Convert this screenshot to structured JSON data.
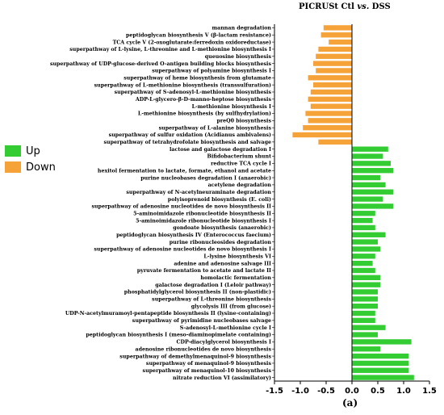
{
  "title_prefix": "PICRUSt Ctl",
  "title_vs": "vs.",
  "title_suffix": "DSS",
  "panel_label": "(a)",
  "colors": {
    "up": "#33cc33",
    "down": "#f5a238"
  },
  "legend": [
    {
      "key": "up",
      "label": "Up"
    },
    {
      "key": "down",
      "label": "Down"
    }
  ],
  "chart_data": {
    "type": "bar",
    "orientation": "horizontal",
    "title": "PICRUSt Ctl vs. DSS",
    "xlim": [
      -1.5,
      1.5
    ],
    "xticks": [
      "-1.5",
      "-1.0",
      "-0.5",
      "0.0",
      "0.5",
      "1.0",
      "1.5"
    ],
    "xtick_values": [
      -1.5,
      -1.0,
      -0.5,
      0.0,
      0.5,
      1.0,
      1.5
    ],
    "series": [
      {
        "name": "Up",
        "color": "#33cc33"
      },
      {
        "name": "Down",
        "color": "#f5a238"
      }
    ],
    "categories": [
      "mannan degradation",
      "peptidoglycan biosynthesis V (&beta;-lactam resistance)",
      "TCA cycle V (2-oxoglutarate:ferredoxin oxidoreductase)",
      "superpathway of L-lysine, L-threonine and L-methionine biosynthesis I",
      "queuosine biosynthesis",
      "superpathway of UDP-glucose-derived O-antigen building blocks biosynthesis",
      "superpathway of polyamine biosynthesis I",
      "superpathway of heme biosynthesis from glutamate",
      "superpathway of L-methionine biosynthesis (transsulfuration)",
      "superpathway of S-adenosyl-L-methionine biosynthesis",
      "ADP-L-glycero-&beta;-D-manno-heptose biosynthesis",
      "L-methionine biosynthesis I",
      "L-methionine biosynthesis (by sulfhydrylation)",
      "preQ0 biosynthesis",
      "superpathway of L-alanine biosynthesis",
      "superpathway of sulfur oxidation (Acidianus ambivalens)",
      "superpathway of tetrahydrofolate biosynthesis and salvage",
      "lactose and galactose degradation I",
      "Bifidobacterium shunt",
      "reductive TCA cycle I",
      "hexitol fermentation to lactate, formate, ethanol and acetate",
      "purine nucleobases degradation I (anaerobic)",
      "acetylene degradation",
      "superpathway of N-acetylneuraminate degradation",
      "polyisoprenoid biosynthesis (E. coli)",
      "superpathway of adenosine nucleotides de novo biosynthesis II",
      "5-aminoimidazole ribonucleotide biosynthesis II",
      "5-aminoimidazole ribonucleotide biosynthesis I",
      "gondoate biosynthesis (anaerobic)",
      "peptidoglycan biosynthesis IV (Enterococcus faecium)",
      "purine ribonucleosides degradation",
      "superpathway of adenosine nucleotides de novo biosynthesis I",
      "L-lysine biosynthesis VI",
      "adenine and adenosine salvage III",
      "pyruvate fermentation to acetate and lactate II",
      "homolactic fermentation",
      "galactose degradation I (Leloir pathway)",
      "phosphatidylglycerol biosynthesis II (non-plastidic)",
      "superpathway of L-threonine biosynthesis",
      "glycolysis III (from glucose)",
      "UDP-N-acetylmuramoyl-pentapeptide biosynthesis II (lysine-containing)",
      "superpathway of pyrimidine nucleobases salvage",
      "S-adenosyl-L-methionine cycle I",
      "peptidoglycan biosynthesis I (meso-diaminopimelate containing)",
      "CDP-diacylglycerol biosynthesis I",
      "adenosine ribonucleotides de novo biosynthesis",
      "superpathway of demethylmenaquinol-9 biosynthesis",
      "superpathway of menaquinol-9 biosynthesis",
      "superpathway of menaquinol-10 biosynthesis",
      "nitrate reduction VI (assimilatory)"
    ],
    "values": [
      -0.55,
      -0.6,
      -0.45,
      -0.65,
      -0.7,
      -0.75,
      -0.7,
      -0.85,
      -0.75,
      -0.8,
      -0.85,
      -0.8,
      -0.9,
      -0.85,
      -0.95,
      -1.15,
      -0.65,
      0.7,
      0.6,
      0.75,
      0.8,
      0.55,
      0.65,
      0.8,
      0.6,
      0.8,
      0.45,
      0.4,
      0.45,
      0.65,
      0.5,
      0.55,
      0.45,
      0.4,
      0.45,
      0.55,
      0.55,
      0.5,
      0.5,
      0.5,
      0.45,
      0.45,
      0.65,
      0.5,
      1.15,
      0.55,
      1.1,
      1.1,
      1.1,
      1.2
    ],
    "grid": false,
    "legend_position": "left"
  }
}
